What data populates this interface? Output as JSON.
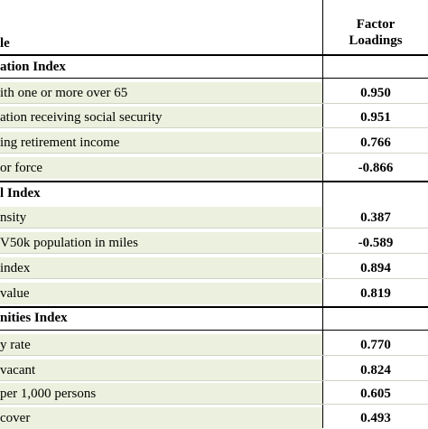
{
  "header": {
    "variable_label": "le",
    "factor_label_1": "Factor",
    "factor_label_2": "Loadings"
  },
  "sections": [
    {
      "title": "ation Index",
      "rows": [
        {
          "label": "ith one or more over 65",
          "value": "0.950"
        },
        {
          "label": "ation receiving social security",
          "value": "0.951"
        },
        {
          "label": "ing retirement income",
          "value": "0.766"
        },
        {
          "label": "or force",
          "value": "-0.866"
        }
      ]
    },
    {
      "title": "l Index",
      "rows": [
        {
          "label": "nsity",
          "value": "0.387"
        },
        {
          "label": "V50k population in miles",
          "value": "-0.589"
        },
        {
          "label": "index",
          "value": "0.894"
        },
        {
          "label": "value",
          "value": "0.819"
        }
      ]
    },
    {
      "title": "nities Index",
      "rows": [
        {
          "label": "y rate",
          "value": "0.770"
        },
        {
          "label": "vacant",
          "value": "0.824"
        },
        {
          "label": "per 1,000 persons",
          "value": "0.605"
        },
        {
          "label": "cover",
          "value": "0.493"
        }
      ]
    }
  ]
}
